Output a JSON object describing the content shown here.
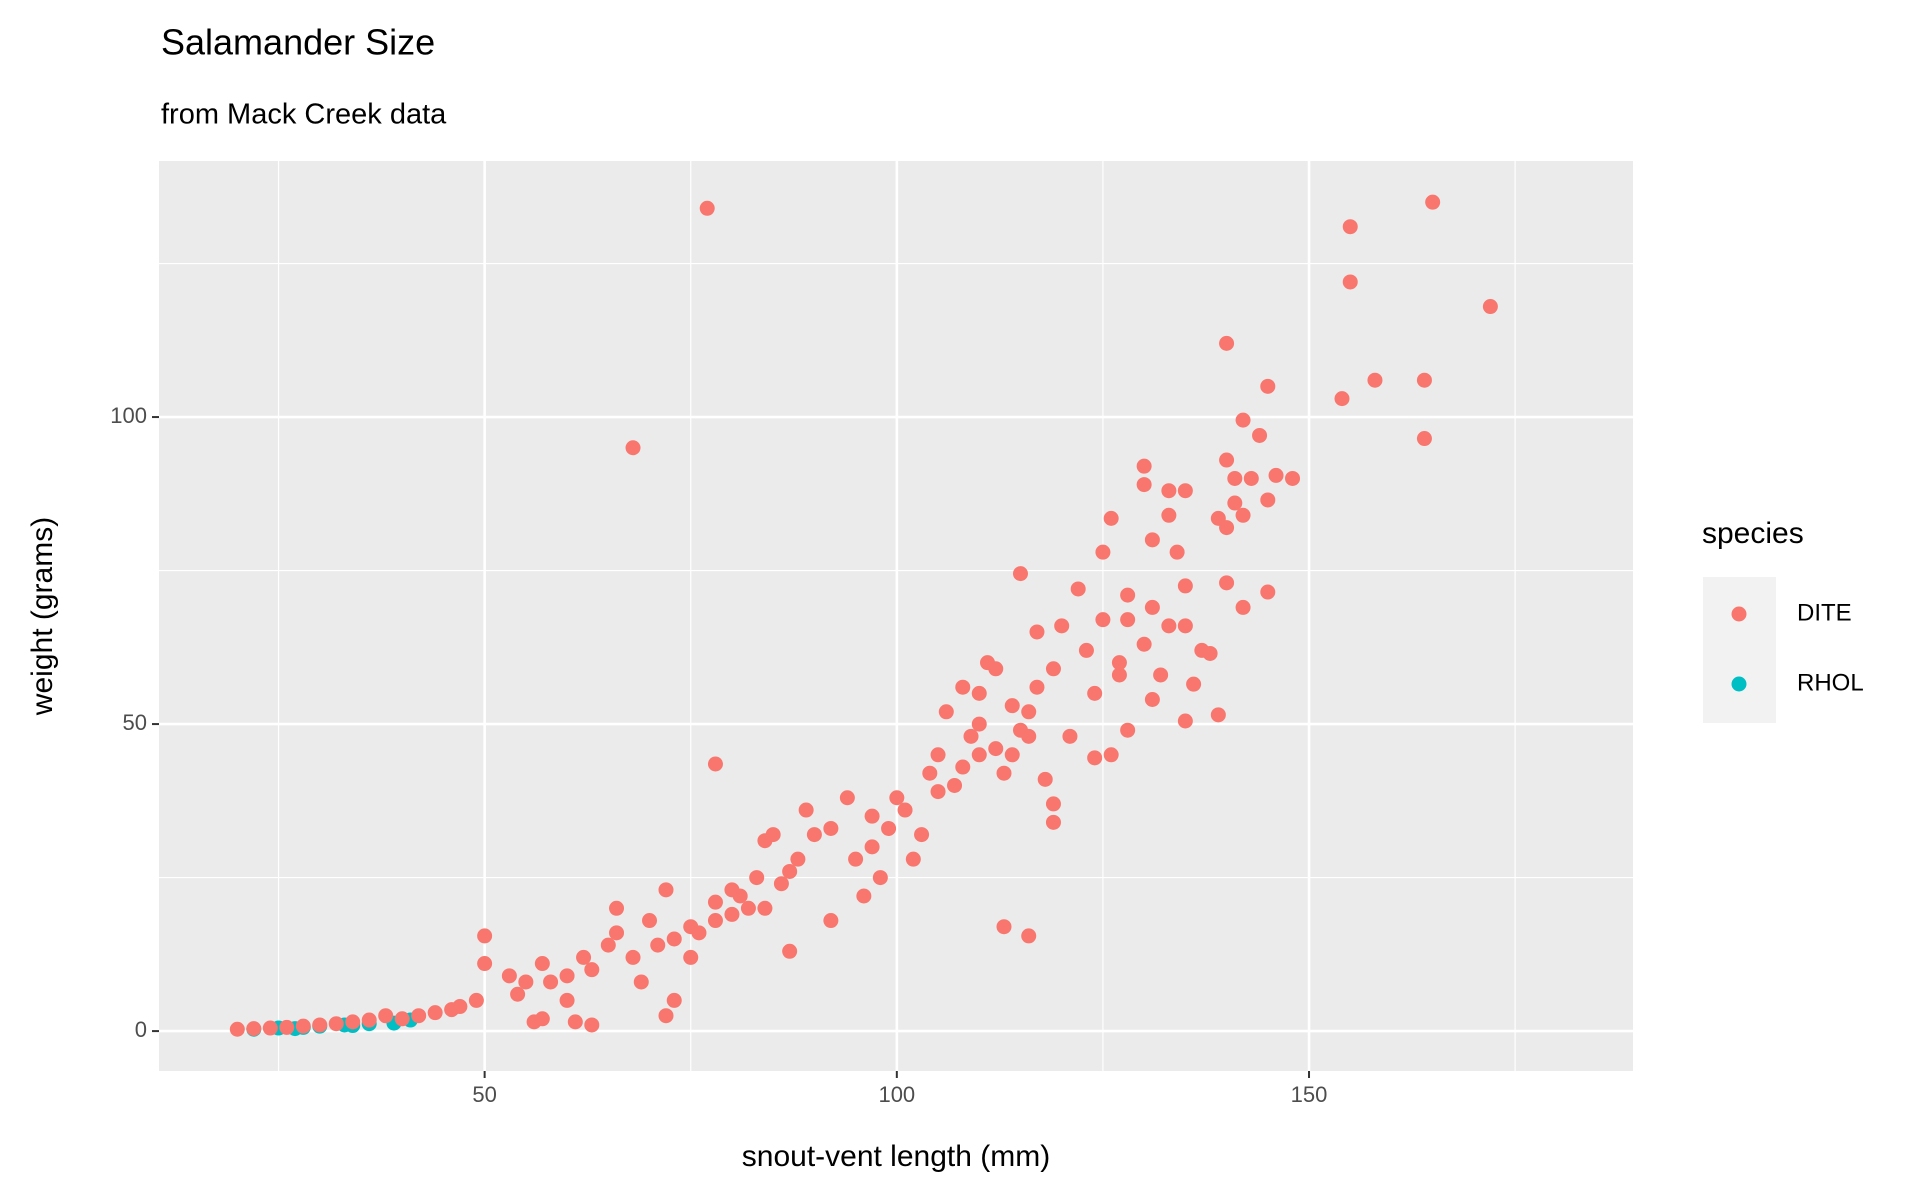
{
  "chart_data": {
    "type": "scatter",
    "title": "Salamander Size",
    "subtitle": "from Mack Creek data",
    "x_label": "snout-vent length (mm)",
    "y_label": "weight (grams)",
    "legend_title": "species",
    "legend_position": "right",
    "grid": true,
    "xlim": [
      10.5,
      189.3
    ],
    "ylim": [
      -6.5,
      141.7
    ],
    "xticks": [
      50,
      100,
      150
    ],
    "yticks": [
      0,
      50,
      100
    ],
    "x_minor_grid": [
      25,
      75,
      125,
      175
    ],
    "y_minor_grid": [
      25,
      75,
      125
    ],
    "series": [
      {
        "name": "DITE",
        "color": "#F8766D",
        "x": [
          77,
          68,
          78,
          113,
          116,
          155,
          155,
          165,
          172,
          158,
          164,
          164,
          154,
          140,
          145,
          142,
          144,
          140,
          141,
          143,
          146,
          148,
          145,
          142,
          139,
          140,
          141,
          140,
          142,
          145,
          115,
          130,
          130,
          133,
          135,
          133,
          131,
          134,
          126,
          125,
          122,
          128,
          135,
          131,
          133,
          130,
          135,
          137,
          138,
          136,
          135,
          139,
          132,
          128,
          126,
          124,
          120,
          119,
          117,
          112,
          108,
          110,
          106,
          110,
          114,
          116,
          118,
          119,
          119,
          113,
          110,
          105,
          104,
          107,
          100,
          101,
          103,
          102,
          97,
          95,
          94,
          92,
          90,
          88,
          87,
          86,
          85,
          84,
          83,
          81,
          82,
          80,
          78,
          78,
          76,
          75,
          73,
          71,
          72,
          70,
          68,
          66,
          65,
          63,
          62,
          60,
          58,
          57,
          55,
          54,
          53,
          50,
          50,
          49,
          47,
          46,
          44,
          42,
          40,
          38,
          36,
          34,
          32,
          30,
          28,
          26,
          24,
          22,
          20,
          63,
          61,
          56,
          72,
          73,
          75,
          96,
          98,
          92,
          111,
          121,
          127,
          123,
          125,
          109,
          112,
          97,
          99,
          89,
          84,
          80,
          66,
          60,
          69,
          87,
          57,
          127,
          131,
          116,
          124,
          115,
          128,
          117,
          108,
          114,
          105
        ],
        "y": [
          134,
          95,
          43.5,
          17,
          15.5,
          131,
          122,
          135,
          118,
          106,
          106,
          96.5,
          103,
          112,
          105,
          99.5,
          97,
          93,
          90,
          90,
          90.5,
          90,
          86.5,
          84,
          83.5,
          82,
          86,
          73,
          69,
          71.5,
          74.5,
          92,
          89,
          88,
          88,
          84,
          80,
          78,
          83.5,
          78,
          72,
          71,
          72.5,
          69,
          66,
          63,
          66,
          62,
          61.5,
          56.5,
          50.5,
          51.5,
          58,
          49,
          45,
          44.5,
          66,
          59,
          56,
          59,
          56,
          55,
          52,
          50,
          53,
          48,
          41,
          37,
          34,
          42,
          45,
          45,
          42,
          40,
          38,
          36,
          32,
          28,
          30,
          28,
          38,
          33,
          32,
          28,
          26,
          24,
          32,
          31,
          25,
          22,
          20,
          19,
          21,
          18,
          16,
          17,
          15,
          14,
          23,
          18,
          12,
          16,
          14,
          10,
          12,
          9,
          8,
          11,
          8,
          6,
          9,
          15.5,
          11,
          5,
          4,
          3.5,
          3,
          2.5,
          2,
          2.5,
          1.8,
          1.5,
          1.2,
          1,
          0.8,
          0.6,
          0.5,
          0.4,
          0.3,
          1,
          1.5,
          1.5,
          2.5,
          5,
          12,
          22,
          25,
          18,
          60,
          48,
          58,
          62,
          67,
          48,
          46,
          35,
          33,
          36,
          20,
          23,
          20,
          5,
          8,
          13,
          2,
          60,
          54,
          52,
          55,
          49,
          67,
          65,
          43,
          45,
          39
        ]
      },
      {
        "name": "RHOL",
        "color": "#00BFC4",
        "x": [
          22,
          25,
          28,
          30,
          33,
          36,
          39,
          41,
          27,
          34
        ],
        "y": [
          0.3,
          0.5,
          0.6,
          0.8,
          1,
          1.2,
          1.3,
          1.8,
          0.4,
          0.9
        ]
      }
    ]
  }
}
